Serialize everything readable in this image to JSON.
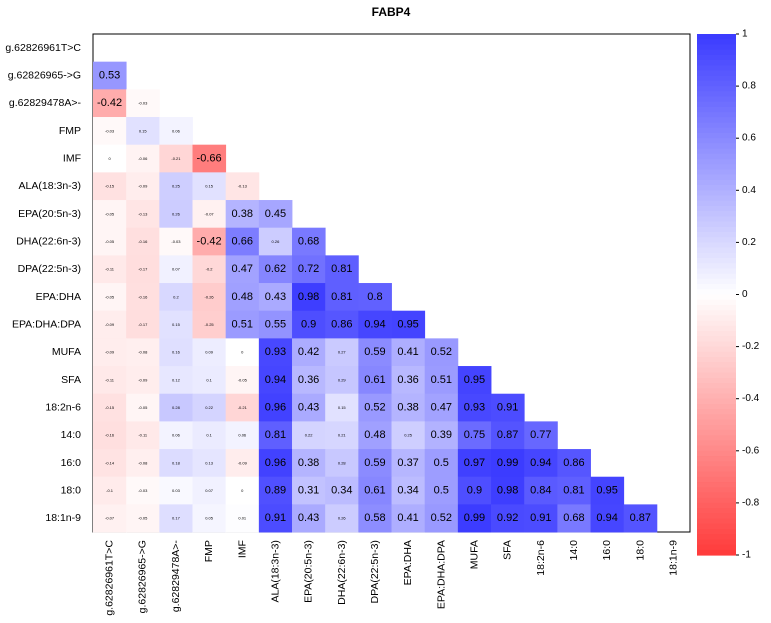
{
  "chart_data": {
    "type": "heatmap",
    "title": "FABP4",
    "row_labels": [
      "g.62826961T>C",
      "g.62826965->G",
      "g.62829478A>-",
      "FMP",
      "IMF",
      "ALA(18:3n-3)",
      "EPA(20:5n-3)",
      "DHA(22:6n-3)",
      "DPA(22:5n-3)",
      "EPA:DHA",
      "EPA:DHA:DPA",
      "MUFA",
      "SFA",
      "18:2n-6",
      "14:0",
      "16:0",
      "18:0",
      "18:1n-9"
    ],
    "col_labels": [
      "g.62826961T>C",
      "g.62826965->G",
      "g.62829478A>-",
      "FMP",
      "IMF",
      "ALA(18:3n-3)",
      "EPA(20:5n-3)",
      "DHA(22:6n-3)",
      "DPA(22:5n-3)",
      "EPA:DHA",
      "EPA:DHA:DPA",
      "MUFA",
      "SFA",
      "18:2n-6",
      "14:0",
      "16:0",
      "18:0",
      "18:1n-9"
    ],
    "values": [
      [],
      [
        0.53
      ],
      [
        -0.42,
        -0.03
      ],
      [
        -0.03,
        0.15,
        0.06
      ],
      [
        0,
        -0.06,
        -0.21,
        -0.66
      ],
      [
        -0.15,
        -0.09,
        0.25,
        0.15,
        -0.13
      ],
      [
        -0.05,
        -0.13,
        0.26,
        -0.07,
        0.38,
        0.45
      ],
      [
        -0.05,
        -0.16,
        -0.03,
        -0.42,
        0.66,
        0.26,
        0.68
      ],
      [
        -0.11,
        -0.17,
        0.07,
        -0.2,
        0.47,
        0.62,
        0.72,
        0.81
      ],
      [
        -0.05,
        -0.16,
        0.2,
        -0.26,
        0.48,
        0.43,
        0.98,
        0.81,
        0.8
      ],
      [
        -0.09,
        -0.17,
        0.15,
        -0.25,
        0.51,
        0.55,
        0.9,
        0.86,
        0.94,
        0.95
      ],
      [
        -0.09,
        -0.08,
        0.16,
        0.09,
        0,
        0.93,
        0.42,
        0.27,
        0.59,
        0.41,
        0.52
      ],
      [
        -0.11,
        -0.09,
        0.12,
        0.1,
        -0.05,
        0.94,
        0.36,
        0.29,
        0.61,
        0.36,
        0.51,
        0.95
      ],
      [
        -0.15,
        -0.05,
        0.28,
        0.22,
        -0.21,
        0.96,
        0.43,
        0.15,
        0.52,
        0.38,
        0.47,
        0.93,
        0.91
      ],
      [
        -0.16,
        -0.11,
        0.06,
        0.1,
        0.06,
        0.81,
        0.22,
        0.21,
        0.48,
        0.25,
        0.39,
        0.75,
        0.87,
        0.77
      ],
      [
        -0.14,
        -0.08,
        0.18,
        0.13,
        -0.09,
        0.96,
        0.38,
        0.28,
        0.59,
        0.37,
        0.5,
        0.97,
        0.99,
        0.94,
        0.86
      ],
      [
        -0.1,
        -0.03,
        0.03,
        0.07,
        0,
        0.89,
        0.31,
        0.34,
        0.61,
        0.34,
        0.5,
        0.9,
        0.98,
        0.84,
        0.81,
        0.95
      ],
      [
        -0.07,
        -0.05,
        0.17,
        0.05,
        0.01,
        0.91,
        0.43,
        0.26,
        0.58,
        0.41,
        0.52,
        0.99,
        0.92,
        0.91,
        0.68,
        0.94,
        0.87
      ]
    ],
    "value_range": [
      -1,
      1
    ],
    "colorbar_ticks": [
      "1",
      "0.8",
      "0.6",
      "0.4",
      "0.2",
      "0",
      "-0.2",
      "-0.4",
      "-0.6",
      "-0.8",
      "-1"
    ],
    "colors": {
      "positive": "#3a3aff",
      "negative": "#ff3a3a",
      "neutral": "#ffffff",
      "frame": "#000000"
    }
  }
}
